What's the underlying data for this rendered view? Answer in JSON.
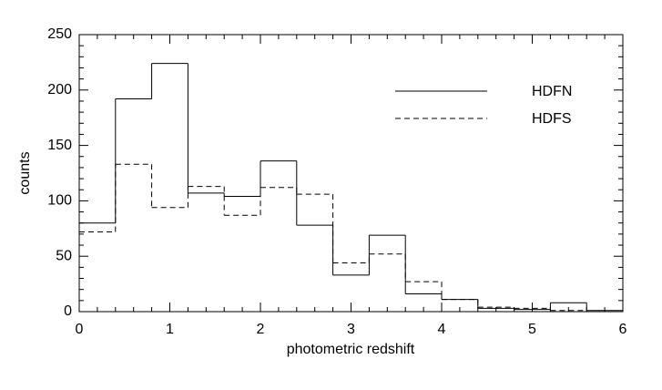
{
  "chart_data": {
    "type": "histogram",
    "xlabel": "photometric redshift",
    "ylabel": "counts",
    "bins": [
      0,
      0.4,
      0.8,
      1.2,
      1.6,
      2.0,
      2.4,
      2.8,
      3.2,
      3.6,
      4.0,
      4.4,
      4.8,
      5.2,
      5.6,
      6.0
    ],
    "series": [
      {
        "name": "HDFN",
        "color": "#000000",
        "linestyle": "solid",
        "values": [
          80,
          192,
          224,
          107,
          104,
          136,
          78,
          33,
          69,
          16,
          11,
          3,
          2,
          8,
          1
        ]
      },
      {
        "name": "HDFS",
        "color": "#000000",
        "linestyle": "dashed",
        "values": [
          72,
          133,
          94,
          113,
          87,
          112,
          106,
          44,
          52,
          27,
          11,
          4,
          3,
          1,
          0
        ]
      }
    ],
    "xlim": [
      0,
      6
    ],
    "ylim": [
      0,
      250
    ],
    "xticks": [
      0,
      1,
      2,
      3,
      4,
      5,
      6
    ],
    "yticks": [
      0,
      50,
      100,
      150,
      200,
      250
    ],
    "legend": "upper-right"
  }
}
